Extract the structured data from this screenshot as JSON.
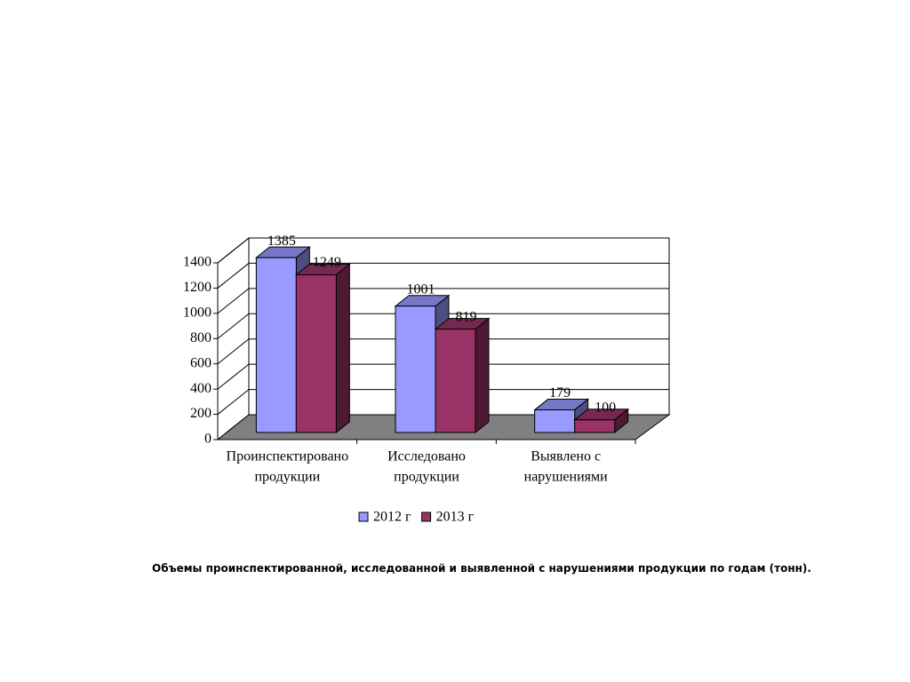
{
  "chart_data": {
    "type": "bar3d",
    "categories": [
      [
        "Проинспектировано",
        "продукции"
      ],
      [
        "Исследовано",
        "продукции"
      ],
      [
        "Выявлено с",
        "нарушениями"
      ]
    ],
    "series": [
      {
        "name": "2012 г",
        "color": "#9999ff",
        "values": [
          1385,
          1001,
          179
        ]
      },
      {
        "name": "2013 г",
        "color": "#993366",
        "values": [
          1249,
          819,
          100
        ]
      }
    ],
    "ylim": [
      0,
      1400
    ],
    "yticks": [
      0,
      200,
      400,
      600,
      800,
      1000,
      1200,
      1400
    ],
    "grid": true,
    "legend": "bottom"
  },
  "caption": "Объемы проинспектированной, исследованной и выявленной с нарушениями продукции по годам (тонн)."
}
